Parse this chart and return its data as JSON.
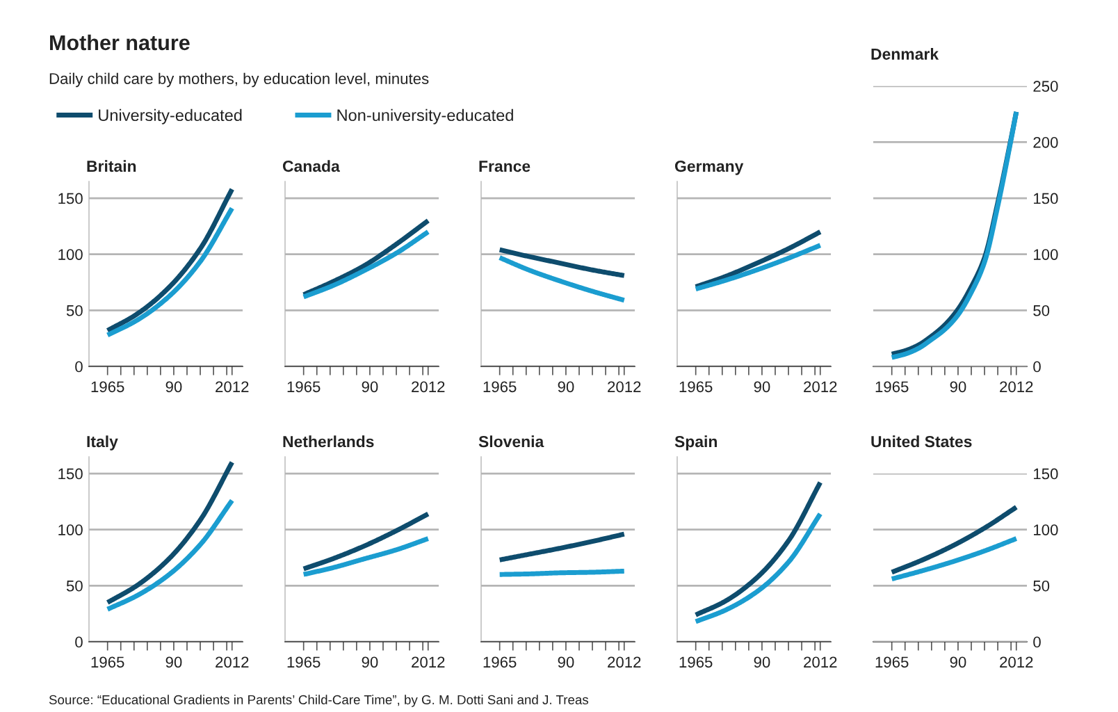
{
  "chart_data": [
    {
      "type": "other",
      "title": "Mother nature",
      "subtitle": "Daily child care by mothers, by education level, minutes",
      "annotations": [
        "Source: “Educational Gradients in Parents’ Child-Care Time”, by G. M. Dotti Sani and J. Treas"
      ]
    },
    {
      "type": "line",
      "title": "Britain",
      "x": [
        1965,
        1976,
        1988,
        2000,
        2012
      ],
      "xlim": [
        1958,
        2016
      ],
      "xticks": [
        1965,
        {
          "value": 1970,
          "label": null
        },
        {
          "value": 1975,
          "label": null
        },
        {
          "value": 1980,
          "label": null
        },
        {
          "value": 1985,
          "label": null
        },
        {
          "value": 1990,
          "label": "90"
        },
        {
          "value": 1995,
          "label": null
        },
        {
          "value": 2000,
          "label": null
        },
        {
          "value": 2005,
          "label": null
        },
        {
          "value": 2010,
          "label": null
        },
        2012
      ],
      "ylim": [
        0,
        165
      ],
      "yticks": [
        0,
        50,
        100,
        150
      ],
      "grid": "y",
      "legend": "top right",
      "series": [
        {
          "name": "University-educated",
          "color": "#0e4c6d",
          "values": [
            32,
            46.5,
            70,
            105,
            158
          ]
        },
        {
          "name": "Non-university-educated",
          "color": "#1b9dd0",
          "values": [
            28,
            41,
            62,
            93.5,
            141
          ]
        }
      ]
    },
    {
      "type": "line",
      "title": "Canada",
      "x": [
        1965,
        1976,
        1988,
        2000,
        2012
      ],
      "xlim": [
        1958,
        2016
      ],
      "xticks": [
        1965,
        {
          "value": 1970,
          "label": null
        },
        {
          "value": 1975,
          "label": null
        },
        {
          "value": 1980,
          "label": null
        },
        {
          "value": 1985,
          "label": null
        },
        {
          "value": 1990,
          "label": "90"
        },
        {
          "value": 1995,
          "label": null
        },
        {
          "value": 2000,
          "label": null
        },
        {
          "value": 2005,
          "label": null
        },
        {
          "value": 2010,
          "label": null
        },
        2012
      ],
      "ylim": [
        0,
        165
      ],
      "yticks": [
        0,
        50,
        100,
        150
      ],
      "grid": "y",
      "tick_labels": "x",
      "series": [
        {
          "color": "#0e4c6d",
          "values": [
            64,
            75.5,
            90,
            109,
            130
          ]
        },
        {
          "color": "#1b9dd0",
          "values": [
            62,
            72,
            85.6,
            101,
            120
          ]
        }
      ]
    },
    {
      "type": "line",
      "title": "France",
      "x": [
        1965,
        1976,
        1988,
        2000,
        2012
      ],
      "xlim": [
        1958,
        2016
      ],
      "xticks": [
        1965,
        {
          "value": 1970,
          "label": null
        },
        {
          "value": 1975,
          "label": null
        },
        {
          "value": 1980,
          "label": null
        },
        {
          "value": 1985,
          "label": null
        },
        {
          "value": 1990,
          "label": "90"
        },
        {
          "value": 1995,
          "label": null
        },
        {
          "value": 2000,
          "label": null
        },
        {
          "value": 2005,
          "label": null
        },
        {
          "value": 2010,
          "label": null
        },
        2012
      ],
      "ylim": [
        0,
        165
      ],
      "yticks": [
        0,
        50,
        100,
        150
      ],
      "grid": "y",
      "tick_labels": "x",
      "series": [
        {
          "color": "#0e4c6d",
          "values": [
            104,
            98,
            92,
            86,
            81
          ]
        },
        {
          "color": "#1b9dd0",
          "values": [
            97,
            86,
            76,
            67,
            59
          ]
        }
      ]
    },
    {
      "type": "line",
      "title": "Germany",
      "x": [
        1965,
        1976,
        1988,
        2000,
        2012
      ],
      "xlim": [
        1958,
        2016
      ],
      "xticks": [
        1965,
        {
          "value": 1970,
          "label": null
        },
        {
          "value": 1975,
          "label": null
        },
        {
          "value": 1980,
          "label": null
        },
        {
          "value": 1985,
          "label": null
        },
        {
          "value": 1990,
          "label": "90"
        },
        {
          "value": 1995,
          "label": null
        },
        {
          "value": 2000,
          "label": null
        },
        {
          "value": 2005,
          "label": null
        },
        {
          "value": 2010,
          "label": null
        },
        2012
      ],
      "ylim": [
        0,
        165
      ],
      "yticks": [
        0,
        50,
        100,
        150
      ],
      "grid": "y",
      "tick_labels": "x",
      "series": [
        {
          "color": "#0e4c6d",
          "values": [
            71,
            80,
            92,
            105,
            120
          ]
        },
        {
          "color": "#1b9dd0",
          "values": [
            69,
            76.6,
            86,
            96.5,
            108
          ]
        }
      ]
    },
    {
      "type": "line",
      "title": "Denmark",
      "x": [
        1965,
        1970,
        1975,
        1980,
        1985,
        1990,
        1995,
        2000,
        2005,
        2010,
        2012
      ],
      "xlim": [
        1958,
        2016
      ],
      "xticks": [
        1965,
        {
          "value": 1970,
          "label": null
        },
        {
          "value": 1975,
          "label": null
        },
        {
          "value": 1980,
          "label": null
        },
        {
          "value": 1985,
          "label": null
        },
        {
          "value": 1990,
          "label": "90"
        },
        {
          "value": 1995,
          "label": null
        },
        {
          "value": 2000,
          "label": null
        },
        {
          "value": 2005,
          "label": null
        },
        {
          "value": 2010,
          "label": null
        },
        2012
      ],
      "y2lim": [
        0,
        250
      ],
      "y2ticks": [
        0,
        50,
        100,
        150,
        200,
        250
      ],
      "grid": "y",
      "series": [
        {
          "color": "#0e4c6d",
          "axis": "y2",
          "values": [
            11,
            14,
            19,
            27,
            37,
            51,
            71,
            97,
            146,
            203,
            227
          ]
        },
        {
          "color": "#1b9dd0",
          "axis": "y2",
          "values": [
            8,
            11,
            16,
            24,
            33,
            46,
            66,
            93,
            143,
            202,
            227
          ]
        }
      ]
    },
    {
      "type": "line",
      "title": "Italy",
      "x": [
        1965,
        1976,
        1988,
        2000,
        2012
      ],
      "xlim": [
        1958,
        2016
      ],
      "xticks": [
        1965,
        {
          "value": 1970,
          "label": null
        },
        {
          "value": 1975,
          "label": null
        },
        {
          "value": 1980,
          "label": null
        },
        {
          "value": 1985,
          "label": null
        },
        {
          "value": 1990,
          "label": "90"
        },
        {
          "value": 1995,
          "label": null
        },
        {
          "value": 2000,
          "label": null
        },
        {
          "value": 2005,
          "label": null
        },
        {
          "value": 2010,
          "label": null
        },
        2012
      ],
      "ylim": [
        0,
        165
      ],
      "yticks": [
        0,
        50,
        100,
        150
      ],
      "grid": "y",
      "series": [
        {
          "color": "#0e4c6d",
          "values": [
            35,
            50,
            73.5,
            108.5,
            160
          ]
        },
        {
          "color": "#1b9dd0",
          "values": [
            29,
            41,
            59.5,
            86.6,
            126
          ]
        }
      ]
    },
    {
      "type": "line",
      "title": "Netherlands",
      "x": [
        1965,
        1976,
        1988,
        2000,
        2012
      ],
      "xlim": [
        1958,
        2016
      ],
      "xticks": [
        1965,
        {
          "value": 1970,
          "label": null
        },
        {
          "value": 1975,
          "label": null
        },
        {
          "value": 1980,
          "label": null
        },
        {
          "value": 1985,
          "label": null
        },
        {
          "value": 1990,
          "label": "90"
        },
        {
          "value": 1995,
          "label": null
        },
        {
          "value": 2000,
          "label": null
        },
        {
          "value": 2005,
          "label": null
        },
        {
          "value": 2010,
          "label": null
        },
        2012
      ],
      "ylim": [
        0,
        165
      ],
      "yticks": [
        0,
        50,
        100,
        150
      ],
      "grid": "y",
      "tick_labels": "x",
      "series": [
        {
          "color": "#0e4c6d",
          "values": [
            65,
            74,
            85.5,
            99,
            114
          ]
        },
        {
          "color": "#1b9dd0",
          "values": [
            60,
            66,
            74,
            82,
            92
          ]
        }
      ]
    },
    {
      "type": "line",
      "title": "Slovenia",
      "x": [
        1965,
        1976,
        1988,
        2000,
        2012
      ],
      "xlim": [
        1958,
        2016
      ],
      "xticks": [
        1965,
        {
          "value": 1970,
          "label": null
        },
        {
          "value": 1975,
          "label": null
        },
        {
          "value": 1980,
          "label": null
        },
        {
          "value": 1985,
          "label": null
        },
        {
          "value": 1990,
          "label": "90"
        },
        {
          "value": 1995,
          "label": null
        },
        {
          "value": 2000,
          "label": null
        },
        {
          "value": 2005,
          "label": null
        },
        {
          "value": 2010,
          "label": null
        },
        2012
      ],
      "ylim": [
        0,
        165
      ],
      "yticks": [
        0,
        50,
        100,
        150
      ],
      "grid": "y",
      "tick_labels": "x",
      "series": [
        {
          "color": "#0e4c6d",
          "values": [
            73,
            78,
            83.5,
            89.5,
            96
          ]
        },
        {
          "color": "#1b9dd0",
          "values": [
            60,
            60.5,
            61.5,
            62,
            63
          ]
        }
      ]
    },
    {
      "type": "line",
      "title": "Spain",
      "x": [
        1965,
        1976,
        1988,
        2000,
        2012
      ],
      "xlim": [
        1958,
        2016
      ],
      "xticks": [
        1965,
        {
          "value": 1970,
          "label": null
        },
        {
          "value": 1975,
          "label": null
        },
        {
          "value": 1980,
          "label": null
        },
        {
          "value": 1985,
          "label": null
        },
        {
          "value": 1990,
          "label": "90"
        },
        {
          "value": 1995,
          "label": null
        },
        {
          "value": 2000,
          "label": null
        },
        {
          "value": 2005,
          "label": null
        },
        {
          "value": 2010,
          "label": null
        },
        2012
      ],
      "ylim": [
        0,
        165
      ],
      "yticks": [
        0,
        50,
        100,
        150
      ],
      "grid": "y",
      "tick_labels": "x",
      "series": [
        {
          "color": "#0e4c6d",
          "values": [
            24,
            36,
            57,
            90,
            142
          ]
        },
        {
          "color": "#1b9dd0",
          "values": [
            18,
            28,
            44.5,
            71,
            114
          ]
        }
      ]
    },
    {
      "type": "line",
      "title": "United States",
      "x": [
        1965,
        1976,
        1988,
        2000,
        2012
      ],
      "xlim": [
        1958,
        2016
      ],
      "xticks": [
        1965,
        {
          "value": 1970,
          "label": null
        },
        {
          "value": 1975,
          "label": null
        },
        {
          "value": 1980,
          "label": null
        },
        {
          "value": 1985,
          "label": null
        },
        {
          "value": 1990,
          "label": "90"
        },
        {
          "value": 1995,
          "label": null
        },
        {
          "value": 2000,
          "label": null
        },
        {
          "value": 2005,
          "label": null
        },
        {
          "value": 2010,
          "label": null
        },
        2012
      ],
      "y2lim": [
        0,
        150
      ],
      "y2ticks": [
        0,
        50,
        100,
        150
      ],
      "grid": "y",
      "series": [
        {
          "color": "#0e4c6d",
          "axis": "y2",
          "values": [
            62,
            72.4,
            85.6,
            101.4,
            120
          ]
        },
        {
          "color": "#1b9dd0",
          "axis": "y2",
          "values": [
            56,
            63,
            71.4,
            81,
            92
          ]
        }
      ]
    }
  ]
}
